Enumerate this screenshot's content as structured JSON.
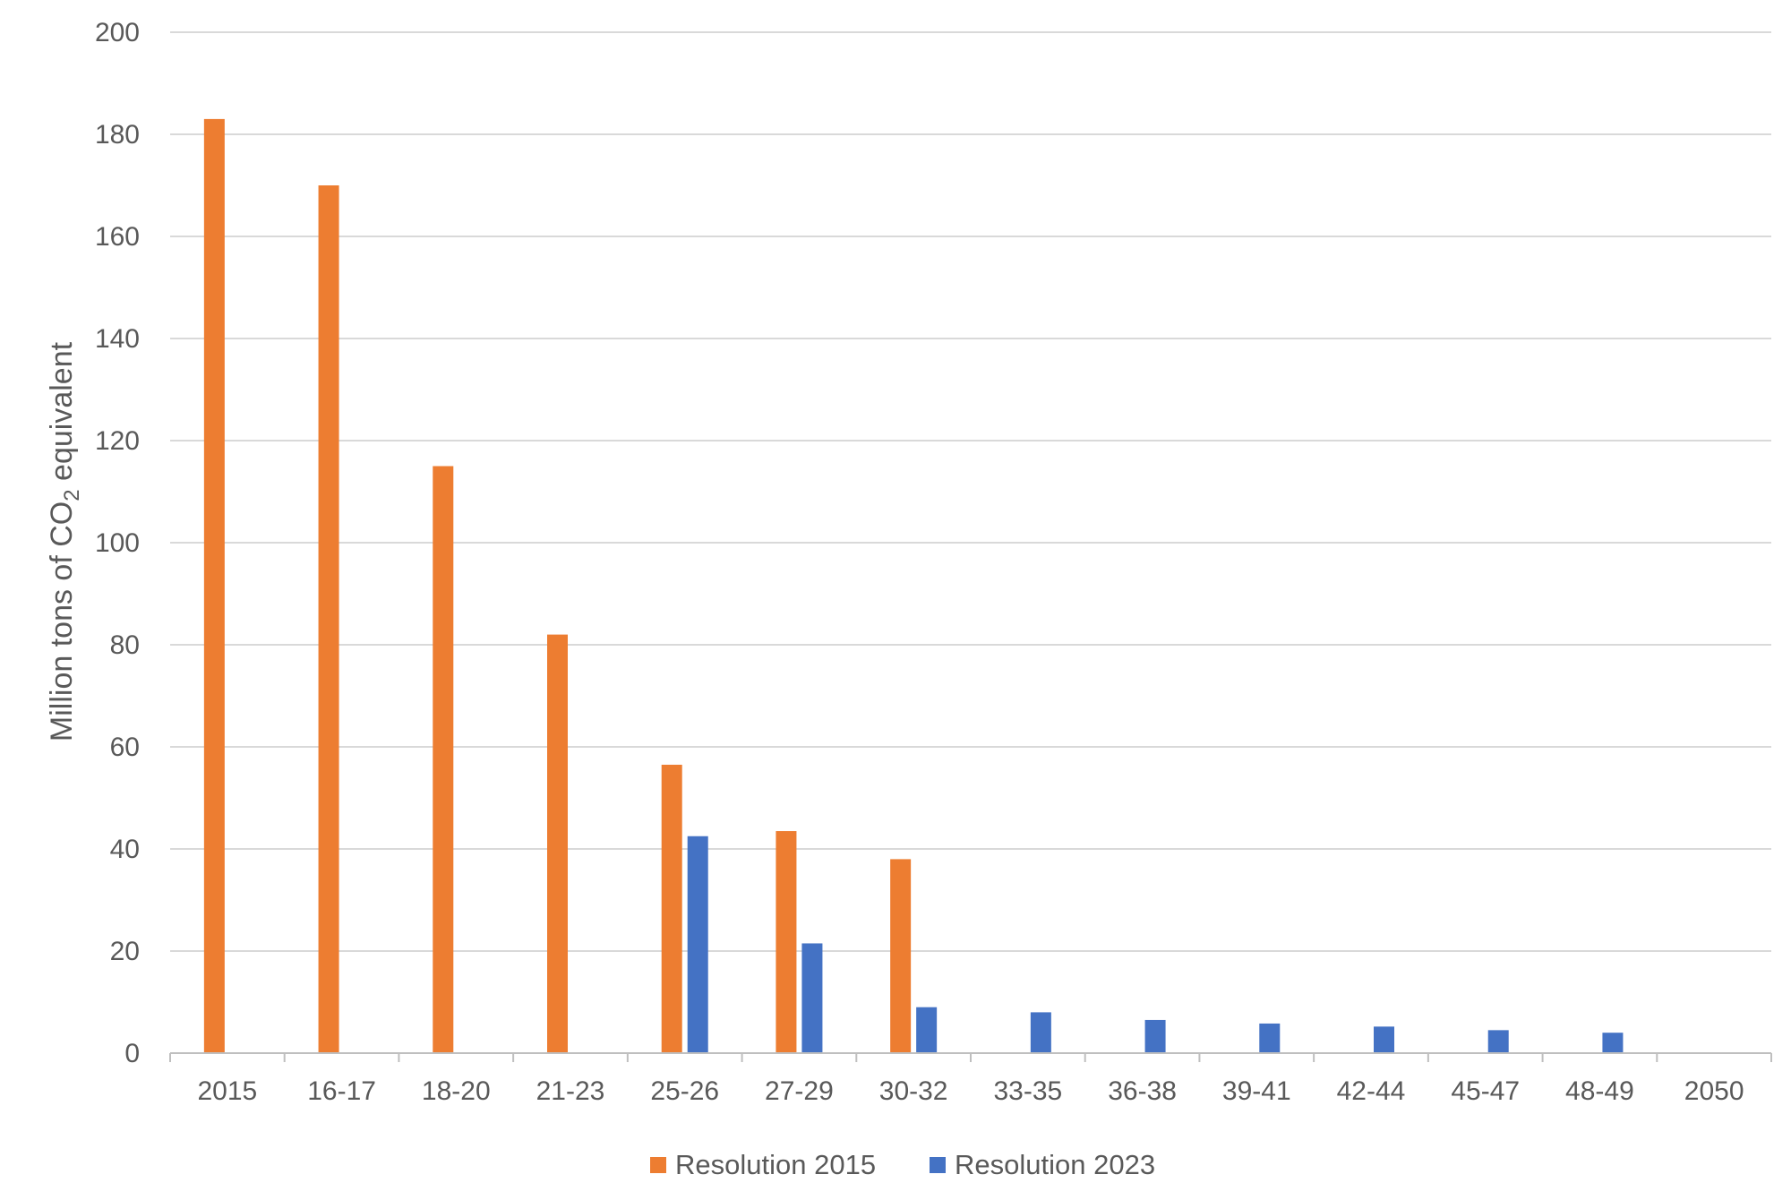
{
  "chart_data": {
    "type": "bar",
    "title": "",
    "xlabel": "",
    "ylabel": "Million tons of CO₂ equivalent",
    "ylabel_parts": {
      "pre": "Million tons of CO",
      "sub": "2",
      "post": " equivalent"
    },
    "ylim": [
      0,
      200
    ],
    "yticks": [
      0,
      20,
      40,
      60,
      80,
      100,
      120,
      140,
      160,
      180,
      200
    ],
    "categories": [
      "2015",
      "16-17",
      "18-20",
      "21-23",
      "25-26",
      "27-29",
      "30-32",
      "33-35",
      "36-38",
      "39-41",
      "42-44",
      "45-47",
      "48-49",
      "2050"
    ],
    "series": [
      {
        "name": "Resolution 2015",
        "color": "#ED7D31",
        "values": [
          183,
          170,
          115,
          82,
          56.5,
          43.5,
          38,
          null,
          null,
          null,
          null,
          null,
          null,
          null
        ]
      },
      {
        "name": "Resolution 2023",
        "color": "#4472C4",
        "values": [
          null,
          null,
          null,
          null,
          42.5,
          21.5,
          9,
          8,
          6.5,
          5.8,
          5.2,
          4.5,
          4,
          null
        ]
      }
    ],
    "grid": true,
    "legend": "bottom"
  }
}
